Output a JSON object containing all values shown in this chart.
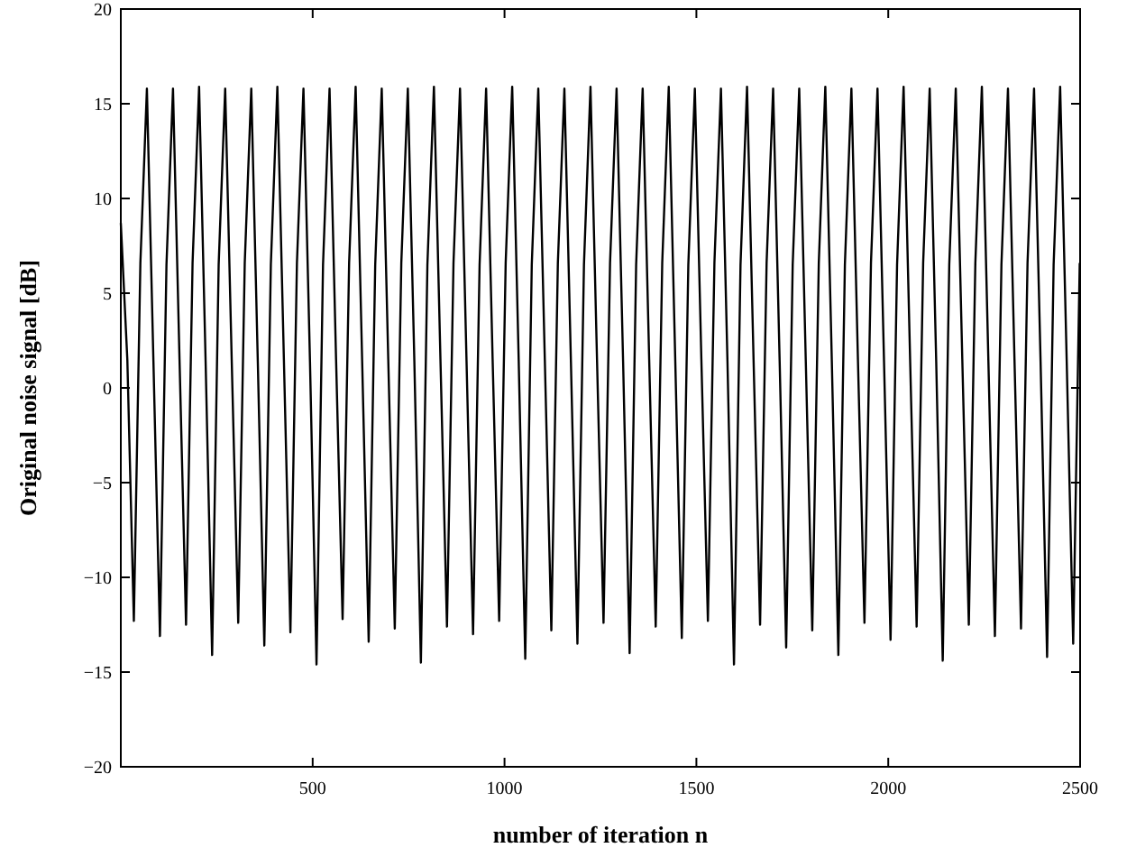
{
  "chart_data": {
    "type": "line",
    "xlabel": "number of iteration n",
    "ylabel": "Original noise signal [dB]",
    "xlim": [
      0,
      2500
    ],
    "xticks": [
      500,
      1000,
      1500,
      2000,
      2500
    ],
    "ylim": [
      -20,
      20
    ],
    "yticks": [
      -20,
      -15,
      -10,
      -5,
      0,
      5,
      10,
      15,
      20
    ],
    "grid": false,
    "line_style": "solid",
    "series": [
      {
        "color": "#000000",
        "x": [
          0,
          17,
          34,
          51,
          68,
          85,
          102,
          119,
          136,
          153,
          170,
          187,
          204,
          221,
          238,
          255,
          272,
          289,
          306,
          323,
          340,
          357,
          374,
          391,
          408,
          425,
          442,
          459,
          476,
          493,
          510,
          527,
          544,
          561,
          578,
          595,
          612,
          629,
          646,
          663,
          680,
          697,
          714,
          731,
          748,
          765,
          782,
          799,
          816,
          833,
          850,
          867,
          884,
          901,
          918,
          935,
          952,
          969,
          986,
          1003,
          1020,
          1037,
          1054,
          1071,
          1088,
          1105,
          1122,
          1139,
          1156,
          1173,
          1190,
          1207,
          1224,
          1241,
          1258,
          1275,
          1292,
          1309,
          1326,
          1343,
          1360,
          1377,
          1394,
          1411,
          1428,
          1445,
          1462,
          1479,
          1496,
          1513,
          1530,
          1547,
          1564,
          1581,
          1598,
          1615,
          1632,
          1649,
          1666,
          1683,
          1700,
          1717,
          1734,
          1751,
          1768,
          1785,
          1802,
          1819,
          1836,
          1853,
          1870,
          1887,
          1904,
          1921,
          1938,
          1955,
          1972,
          1989,
          2006,
          2023,
          2040,
          2057,
          2074,
          2091,
          2108,
          2125,
          2142,
          2159,
          2176,
          2193,
          2210,
          2227,
          2244,
          2261,
          2278,
          2295,
          2312,
          2329,
          2346,
          2363,
          2380,
          2397,
          2414,
          2431,
          2448,
          2465,
          2482,
          2499
        ],
        "values": [
          8.7,
          1.5,
          -12.3,
          6.6,
          15.8,
          1.4,
          -13.1,
          6.5,
          15.8,
          1.5,
          -12.5,
          6.6,
          15.9,
          1.4,
          -14.1,
          6.5,
          15.8,
          1.5,
          -12.4,
          6.6,
          15.8,
          1.4,
          -13.6,
          6.5,
          15.9,
          1.5,
          -12.9,
          6.6,
          15.8,
          1.4,
          -14.6,
          6.5,
          15.8,
          1.5,
          -12.2,
          6.6,
          15.9,
          1.4,
          -13.4,
          6.5,
          15.8,
          1.5,
          -12.7,
          6.6,
          15.8,
          1.4,
          -14.5,
          6.5,
          15.9,
          1.5,
          -12.6,
          6.6,
          15.8,
          1.4,
          -13.0,
          6.5,
          15.8,
          1.5,
          -12.3,
          6.6,
          15.9,
          1.4,
          -14.3,
          6.5,
          15.8,
          1.5,
          -12.8,
          6.6,
          15.8,
          1.4,
          -13.5,
          6.5,
          15.9,
          1.5,
          -12.4,
          6.6,
          15.8,
          1.4,
          -14.0,
          6.5,
          15.8,
          1.5,
          -12.6,
          6.6,
          15.9,
          1.4,
          -13.2,
          6.5,
          15.8,
          1.5,
          -12.3,
          6.6,
          15.8,
          1.4,
          -14.6,
          6.5,
          15.9,
          1.5,
          -12.5,
          6.6,
          15.8,
          1.4,
          -13.7,
          6.5,
          15.8,
          1.5,
          -12.8,
          6.6,
          15.9,
          1.4,
          -14.1,
          6.5,
          15.8,
          1.5,
          -12.4,
          6.6,
          15.8,
          1.4,
          -13.3,
          6.5,
          15.9,
          1.5,
          -12.6,
          6.6,
          15.8,
          1.4,
          -14.4,
          6.5,
          15.8,
          1.5,
          -12.5,
          6.6,
          15.9,
          1.4,
          -13.1,
          6.5,
          15.8,
          1.5,
          -12.7,
          6.6,
          15.8,
          1.4,
          -14.2,
          6.5,
          15.9,
          1.5,
          -13.5,
          6.6
        ]
      }
    ]
  }
}
